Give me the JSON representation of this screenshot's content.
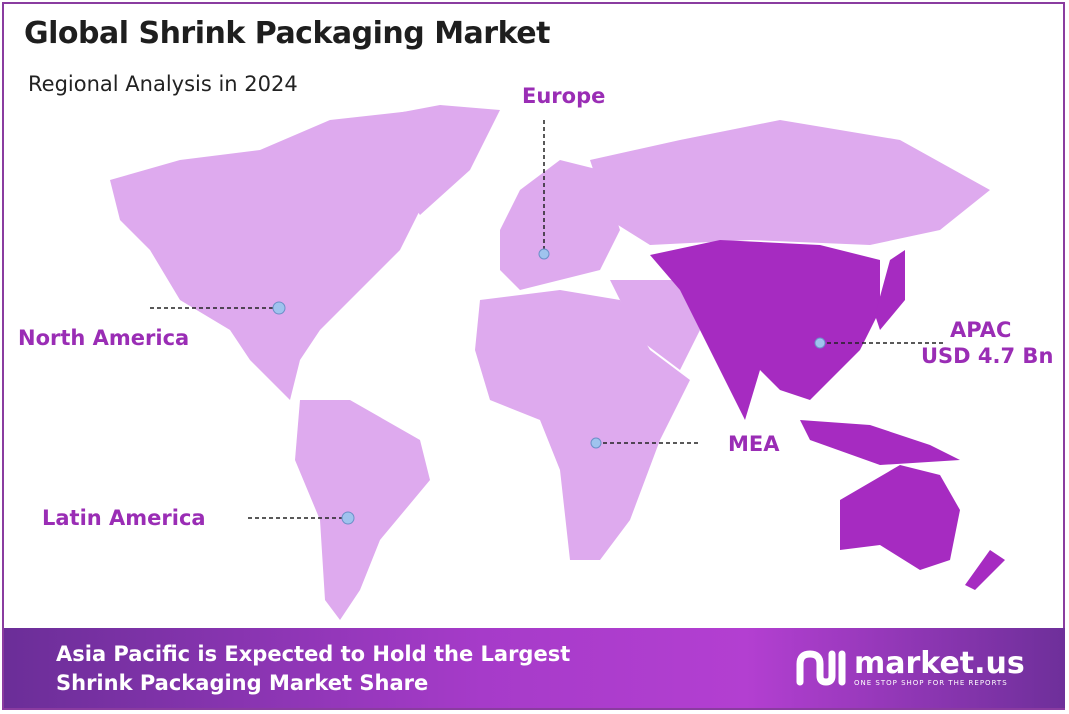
{
  "header": {
    "title": "Global Shrink Packaging Market",
    "subtitle": "Regional Analysis in 2024"
  },
  "regions": [
    {
      "name": "North America",
      "value": ""
    },
    {
      "name": "Europe",
      "value": ""
    },
    {
      "name": "APAC",
      "value": "USD 4.7 Bn",
      "highlighted": true
    },
    {
      "name": "MEA",
      "value": ""
    },
    {
      "name": "Latin America",
      "value": ""
    }
  ],
  "colors": {
    "land": "#deaaee",
    "highlight": "#a62bc1",
    "label": "#9a2db5",
    "marker": "#9fc3ee",
    "banner_start": "#6b2e98",
    "banner_mid": "#b33fd1"
  },
  "banner": {
    "line1": "Asia Pacific is Expected to Hold the Largest",
    "line2": "Shrink Packaging Market Share"
  },
  "logo": {
    "name": "market.us",
    "tagline": "ONE STOP SHOP FOR THE REPORTS"
  }
}
